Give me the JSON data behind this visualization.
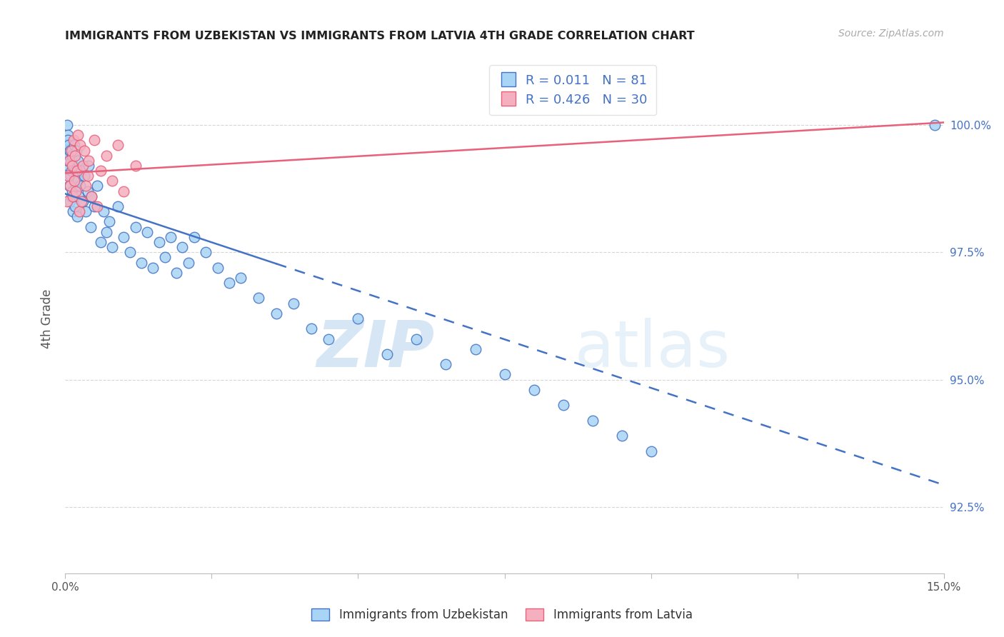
{
  "title": "IMMIGRANTS FROM UZBEKISTAN VS IMMIGRANTS FROM LATVIA 4TH GRADE CORRELATION CHART",
  "source": "Source: ZipAtlas.com",
  "ylabel": "4th Grade",
  "x_min": 0.0,
  "x_max": 15.0,
  "y_min": 91.2,
  "y_max": 101.2,
  "y_ticks": [
    92.5,
    95.0,
    97.5,
    100.0
  ],
  "r_uzbekistan": 0.011,
  "n_uzbekistan": 81,
  "r_latvia": 0.426,
  "n_latvia": 30,
  "color_uzbekistan": "#A8D4F5",
  "color_latvia": "#F5B0C0",
  "line_color_uzbekistan": "#4472C4",
  "line_color_latvia": "#E8607A",
  "watermark_zip": "ZIP",
  "watermark_atlas": "atlas",
  "background_color": "#ffffff",
  "grid_color": "#cccccc",
  "uzb_x": [
    0.02,
    0.03,
    0.04,
    0.04,
    0.05,
    0.05,
    0.06,
    0.06,
    0.07,
    0.07,
    0.08,
    0.08,
    0.09,
    0.1,
    0.1,
    0.11,
    0.12,
    0.12,
    0.13,
    0.14,
    0.15,
    0.15,
    0.16,
    0.17,
    0.18,
    0.19,
    0.2,
    0.21,
    0.22,
    0.23,
    0.25,
    0.27,
    0.3,
    0.33,
    0.35,
    0.38,
    0.4,
    0.43,
    0.45,
    0.5,
    0.55,
    0.6,
    0.65,
    0.7,
    0.75,
    0.8,
    0.9,
    1.0,
    1.1,
    1.2,
    1.3,
    1.4,
    1.5,
    1.6,
    1.7,
    1.8,
    1.9,
    2.0,
    2.1,
    2.2,
    2.4,
    2.6,
    2.8,
    3.0,
    3.3,
    3.6,
    3.9,
    4.2,
    4.5,
    5.0,
    5.5,
    6.0,
    6.5,
    7.0,
    7.5,
    8.0,
    8.5,
    9.0,
    9.5,
    10.0,
    14.85
  ],
  "uzb_y": [
    99.5,
    100.0,
    99.8,
    99.2,
    99.7,
    99.3,
    99.0,
    99.6,
    99.4,
    98.8,
    99.5,
    98.5,
    99.0,
    99.3,
    98.6,
    99.1,
    98.7,
    99.4,
    98.3,
    99.2,
    98.9,
    99.6,
    98.4,
    99.1,
    98.8,
    99.5,
    98.2,
    98.9,
    99.3,
    98.6,
    98.8,
    99.1,
    98.5,
    99.0,
    98.3,
    98.7,
    99.2,
    98.0,
    98.6,
    98.4,
    98.8,
    97.7,
    98.3,
    97.9,
    98.1,
    97.6,
    98.4,
    97.8,
    97.5,
    98.0,
    97.3,
    97.9,
    97.2,
    97.7,
    97.4,
    97.8,
    97.1,
    97.6,
    97.3,
    97.8,
    97.5,
    97.2,
    96.9,
    97.0,
    96.6,
    96.3,
    96.5,
    96.0,
    95.8,
    96.2,
    95.5,
    95.8,
    95.3,
    95.6,
    95.1,
    94.8,
    94.5,
    94.2,
    93.9,
    93.6,
    100.0
  ],
  "lat_x": [
    0.03,
    0.05,
    0.07,
    0.08,
    0.1,
    0.12,
    0.13,
    0.14,
    0.15,
    0.17,
    0.18,
    0.2,
    0.22,
    0.24,
    0.25,
    0.27,
    0.3,
    0.33,
    0.35,
    0.38,
    0.4,
    0.45,
    0.5,
    0.55,
    0.6,
    0.7,
    0.8,
    0.9,
    1.0,
    1.2
  ],
  "lat_y": [
    98.5,
    99.0,
    99.3,
    98.8,
    99.5,
    99.2,
    98.6,
    99.7,
    98.9,
    99.4,
    98.7,
    99.1,
    99.8,
    98.3,
    99.6,
    98.5,
    99.2,
    99.5,
    98.8,
    99.0,
    99.3,
    98.6,
    99.7,
    98.4,
    99.1,
    99.4,
    98.9,
    99.6,
    98.7,
    99.2
  ]
}
